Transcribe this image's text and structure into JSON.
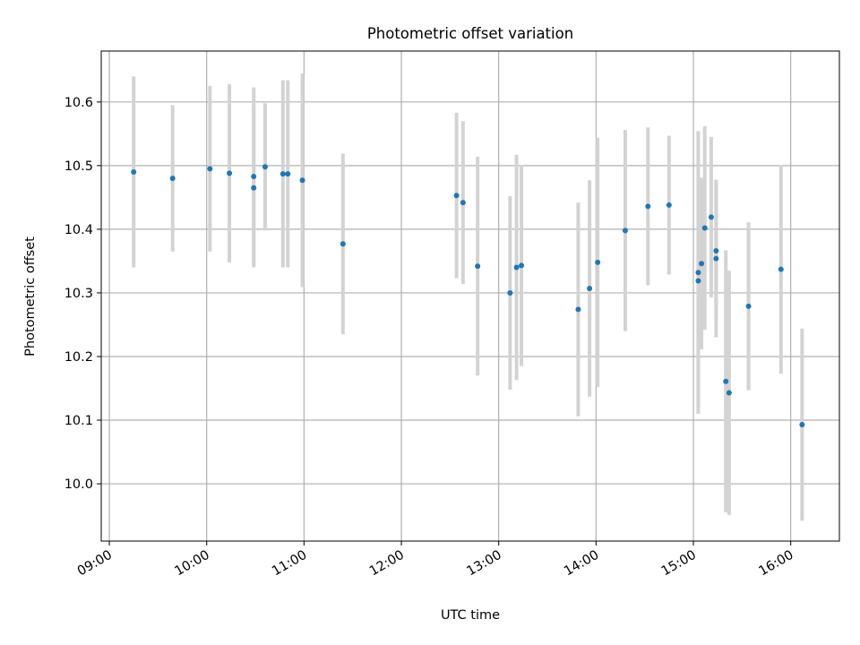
{
  "chart_data": {
    "type": "scatter",
    "title": "Photometric offset variation",
    "xlabel": "UTC time",
    "ylabel": "Photometric offset",
    "x_ticks": [
      "09:00",
      "10:00",
      "11:00",
      "12:00",
      "13:00",
      "14:00",
      "15:00",
      "16:00"
    ],
    "y_ticks": [
      "10.0",
      "10.1",
      "10.2",
      "10.3",
      "10.4",
      "10.5",
      "10.6"
    ],
    "xlim": [
      "08:55",
      "16:30"
    ],
    "ylim": [
      9.91,
      10.68
    ],
    "grid": true,
    "colors": {
      "marker": "#1f77b4",
      "errorbar": "#d3d3d3",
      "grid": "#b0b0b0"
    },
    "series": [
      {
        "values": [
          {
            "x": "09:15",
            "y": 10.49,
            "err": 0.15
          },
          {
            "x": "09:39",
            "y": 10.48,
            "err": 0.115
          },
          {
            "x": "10:02",
            "y": 10.495,
            "err": 0.13
          },
          {
            "x": "10:14",
            "y": 10.488,
            "err": 0.14
          },
          {
            "x": "10:29",
            "y": 10.483,
            "err": 0.14
          },
          {
            "x": "10:29",
            "y": 10.465,
            "err": 0.125
          },
          {
            "x": "10:36",
            "y": 10.498,
            "err": 0.1
          },
          {
            "x": "10:47",
            "y": 10.487,
            "err": 0.147
          },
          {
            "x": "10:50",
            "y": 10.487,
            "err": 0.147
          },
          {
            "x": "10:59",
            "y": 10.477,
            "err": 0.168
          },
          {
            "x": "11:24",
            "y": 10.377,
            "err": 0.142
          },
          {
            "x": "12:34",
            "y": 10.453,
            "err": 0.13
          },
          {
            "x": "12:38",
            "y": 10.442,
            "err": 0.128
          },
          {
            "x": "12:47",
            "y": 10.342,
            "err": 0.172
          },
          {
            "x": "13:07",
            "y": 10.3,
            "err": 0.152
          },
          {
            "x": "13:11",
            "y": 10.34,
            "err": 0.177
          },
          {
            "x": "13:14",
            "y": 10.343,
            "err": 0.158
          },
          {
            "x": "13:49",
            "y": 10.274,
            "err": 0.168
          },
          {
            "x": "13:56",
            "y": 10.307,
            "err": 0.17
          },
          {
            "x": "14:01",
            "y": 10.348,
            "err": 0.196
          },
          {
            "x": "14:18",
            "y": 10.398,
            "err": 0.158
          },
          {
            "x": "14:32",
            "y": 10.436,
            "err": 0.124
          },
          {
            "x": "14:45",
            "y": 10.438,
            "err": 0.109
          },
          {
            "x": "15:03",
            "y": 10.332,
            "err": 0.222
          },
          {
            "x": "15:03",
            "y": 10.319,
            "err": 0.2
          },
          {
            "x": "15:05",
            "y": 10.346,
            "err": 0.135
          },
          {
            "x": "15:07",
            "y": 10.402,
            "err": 0.16
          },
          {
            "x": "15:11",
            "y": 10.419,
            "err": 0.126
          },
          {
            "x": "15:14",
            "y": 10.366,
            "err": 0.11
          },
          {
            "x": "15:14",
            "y": 10.354,
            "err": 0.124
          },
          {
            "x": "15:20",
            "y": 10.161,
            "err": 0.206
          },
          {
            "x": "15:22",
            "y": 10.143,
            "err": 0.192
          },
          {
            "x": "15:34",
            "y": 10.279,
            "err": 0.132
          },
          {
            "x": "15:54",
            "y": 10.337,
            "err": 0.164
          },
          {
            "x": "16:07",
            "y": 10.093,
            "err": 0.151
          }
        ]
      }
    ]
  }
}
